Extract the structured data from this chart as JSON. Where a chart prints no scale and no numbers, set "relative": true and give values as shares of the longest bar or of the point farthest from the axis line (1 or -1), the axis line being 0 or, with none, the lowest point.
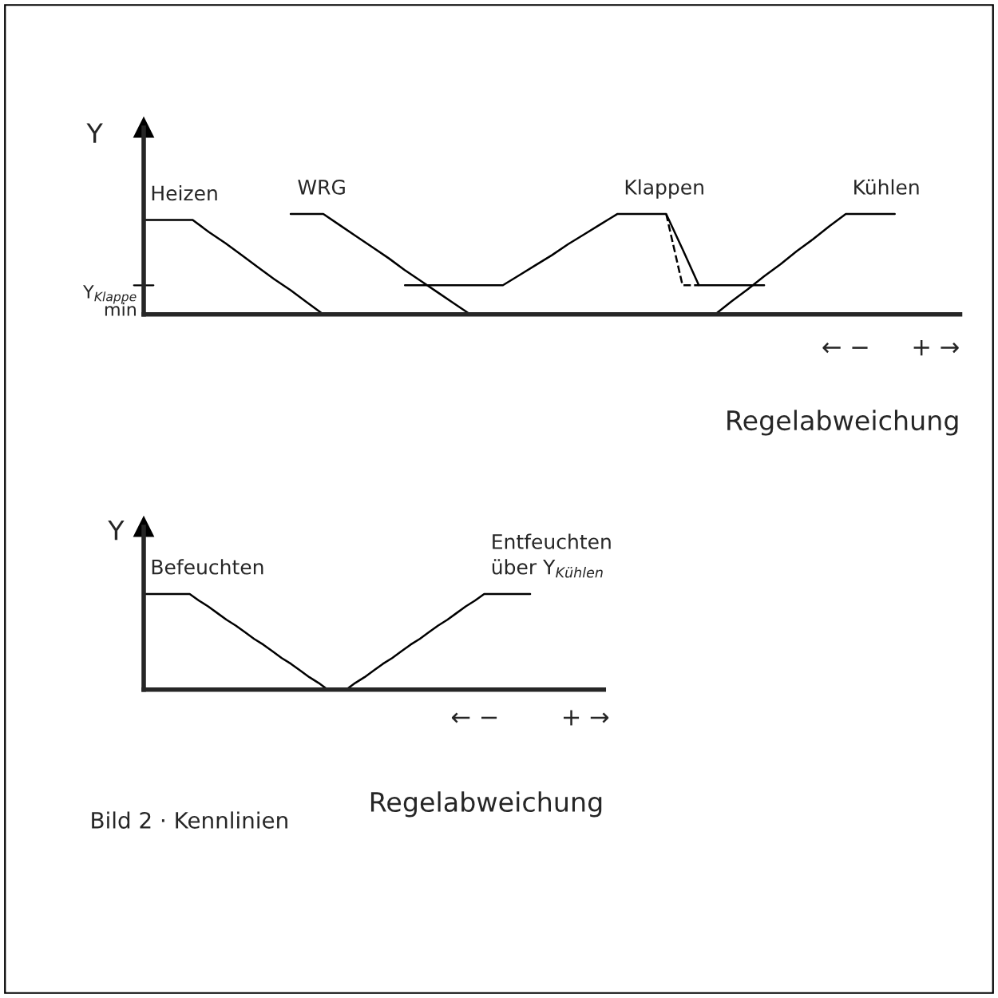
{
  "chart_data": [
    {
      "type": "line",
      "relative": true,
      "ylabel": "Y",
      "xlabel": "Regelabweichung",
      "categories": [
        null,
        null,
        null,
        null,
        null,
        null,
        null,
        null,
        null,
        null,
        null,
        null,
        null,
        null,
        null,
        null,
        null,
        null,
        null,
        null,
        null,
        null,
        null,
        null,
        null,
        null,
        null,
        null,
        null,
        null,
        null,
        null,
        null,
        null,
        null,
        null,
        null,
        null,
        null,
        null,
        null,
        null,
        null,
        null,
        null,
        null,
        null,
        null,
        null,
        null,
        null
      ],
      "annotations": [
        "Y$_{Klappe}$\nmin",
        "← −",
        "+ →"
      ],
      "series": [
        {
          "name": "Heizen",
          "color": "#000000",
          "values": [
            0.94,
            0.94,
            0.94,
            0.94,
            0.82,
            0.71,
            0.59,
            0.47,
            0.35,
            0.24,
            0.12,
            0,
            null,
            null,
            null,
            null,
            null,
            null,
            null,
            null,
            null,
            null,
            null,
            null,
            null,
            null,
            null,
            null,
            null,
            null,
            null,
            null,
            null,
            null,
            null,
            null,
            null,
            null,
            null,
            null,
            null,
            null,
            null,
            null,
            null,
            null,
            null,
            null,
            null,
            null,
            null
          ]
        },
        {
          "name": "WRG",
          "color": "#000000",
          "values": [
            null,
            null,
            null,
            null,
            null,
            null,
            null,
            null,
            null,
            1,
            1,
            1,
            0.89,
            0.78,
            0.67,
            0.56,
            0.44,
            0.33,
            0.22,
            0.11,
            0,
            null,
            null,
            null,
            null,
            null,
            null,
            null,
            null,
            null,
            null,
            null,
            null,
            null,
            null,
            null,
            null,
            null,
            null,
            null,
            null,
            null,
            null,
            null,
            null,
            null,
            null,
            null,
            null,
            null,
            null
          ]
        },
        {
          "name": "Klappen",
          "color": "#000000",
          "values": [
            null,
            null,
            null,
            null,
            null,
            null,
            null,
            null,
            null,
            null,
            null,
            null,
            null,
            null,
            null,
            null,
            0.29,
            0.29,
            0.29,
            0.29,
            0.29,
            0.29,
            0.29,
            0.39,
            0.49,
            0.59,
            0.7,
            0.8,
            0.9,
            1,
            1,
            1,
            1,
            0.65,
            0.29,
            0.29,
            0.29,
            0.29,
            0.29,
            null,
            null,
            null,
            null,
            null,
            null,
            null,
            null,
            null,
            null,
            null,
            null
          ]
        },
        {
          "color": "#000000",
          "line_style": "dashed",
          "values": [
            null,
            null,
            null,
            null,
            null,
            null,
            null,
            null,
            null,
            null,
            null,
            null,
            null,
            null,
            null,
            null,
            null,
            null,
            null,
            null,
            null,
            null,
            null,
            null,
            null,
            null,
            null,
            null,
            null,
            null,
            null,
            null,
            1,
            0.29,
            0.29,
            null,
            null,
            null,
            null,
            null,
            null,
            null,
            null,
            null,
            null,
            null,
            null,
            null,
            null,
            null,
            null
          ]
        },
        {
          "name": "Kühlen",
          "color": "#000000",
          "values": [
            null,
            null,
            null,
            null,
            null,
            null,
            null,
            null,
            null,
            null,
            null,
            null,
            null,
            null,
            null,
            null,
            null,
            null,
            null,
            null,
            null,
            null,
            null,
            null,
            null,
            null,
            null,
            null,
            null,
            null,
            null,
            null,
            null,
            null,
            null,
            0,
            0.13,
            0.25,
            0.38,
            0.5,
            0.63,
            0.75,
            0.88,
            1,
            1,
            1,
            1,
            null,
            null,
            null,
            null
          ]
        }
      ]
    },
    {
      "type": "line",
      "relative": true,
      "ylabel": "Y",
      "xlabel": "Regelabweichung",
      "categories": [
        null,
        null,
        null,
        null,
        null,
        null,
        null,
        null,
        null,
        null,
        null,
        null,
        null,
        null,
        null,
        null,
        null,
        null,
        null,
        null,
        null,
        null,
        null,
        null,
        null,
        null,
        null,
        null,
        null,
        null,
        null,
        null,
        null,
        null,
        null,
        null,
        null,
        null,
        null,
        null,
        null,
        null,
        null,
        null,
        null,
        null,
        null,
        null,
        null,
        null,
        null
      ],
      "annotations": [
        "← −",
        "+ →",
        "Bild 2 · Kennlinien"
      ],
      "series": [
        {
          "name": "Befeuchten",
          "color": "#000000",
          "values": [
            1,
            1,
            1,
            1,
            1,
            1,
            0.93,
            0.87,
            0.8,
            0.73,
            0.67,
            0.6,
            0.53,
            0.47,
            0.4,
            0.33,
            0.27,
            0.2,
            0.13,
            0.07,
            0,
            null,
            null,
            null,
            null,
            null,
            null,
            null,
            null,
            null,
            null,
            null,
            null,
            null,
            null,
            null,
            null,
            null,
            null,
            null,
            null,
            null,
            null,
            null,
            null,
            null,
            null,
            null,
            null,
            null,
            null
          ]
        },
        {
          "name": "Entfeuchten\nüber Y$_{Kühlen}$",
          "color": "#000000",
          "values": [
            null,
            null,
            null,
            null,
            null,
            null,
            null,
            null,
            null,
            null,
            null,
            null,
            null,
            null,
            null,
            null,
            null,
            null,
            null,
            null,
            null,
            null,
            0,
            0.07,
            0.13,
            0.2,
            0.27,
            0.33,
            0.4,
            0.47,
            0.53,
            0.6,
            0.67,
            0.73,
            0.8,
            0.87,
            0.93,
            1,
            1,
            1,
            1,
            1,
            1,
            null,
            null,
            null,
            null,
            null,
            null,
            null,
            null
          ]
        }
      ]
    }
  ]
}
